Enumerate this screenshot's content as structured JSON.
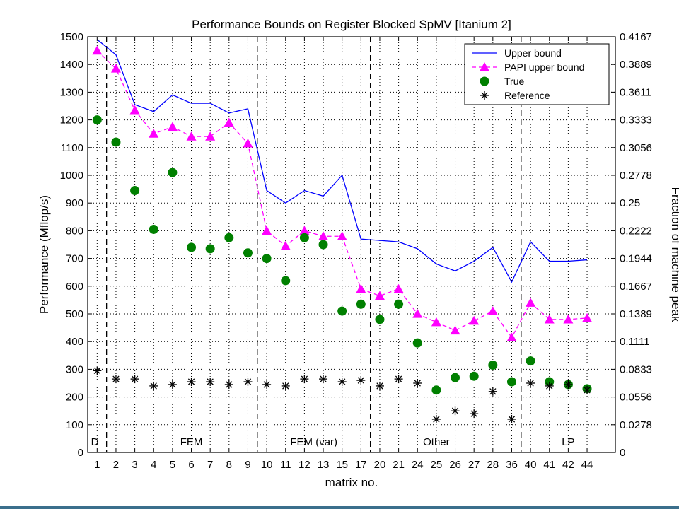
{
  "chart_data": {
    "type": "line",
    "title": "Performance Bounds on Register Blocked SpMV [Itanium 2]",
    "xlabel": "matrix no.",
    "ylabel": "Performance (Mflop/s)",
    "ylabel_right": "Fraction of machine peak",
    "categories": [
      "1",
      "2",
      "3",
      "4",
      "5",
      "6",
      "7",
      "8",
      "9",
      "10",
      "11",
      "12",
      "13",
      "15",
      "17",
      "20",
      "21",
      "24",
      "25",
      "26",
      "27",
      "28",
      "36",
      "40",
      "41",
      "42",
      "44"
    ],
    "ylim": [
      0,
      1500
    ],
    "yticks": [
      "0",
      "100",
      "200",
      "300",
      "400",
      "500",
      "600",
      "700",
      "800",
      "900",
      "1000",
      "1100",
      "1200",
      "1300",
      "1400",
      "1500"
    ],
    "yticks_right": [
      "0",
      "0.0278",
      "0.0556",
      "0.0833",
      "0.1111",
      "0.1389",
      "0.1667",
      "0.1944",
      "0.2222",
      "0.25",
      "0.2778",
      "0.3056",
      "0.3333",
      "0.3611",
      "0.3889",
      "0.4167"
    ],
    "grid": true,
    "legend_position": "top-right",
    "series": [
      {
        "name": "Upper bound",
        "style": "line",
        "color": "#0000ff",
        "values": [
          1490,
          1435,
          1255,
          1230,
          1290,
          1260,
          1260,
          1225,
          1240,
          945,
          900,
          945,
          925,
          1000,
          770,
          765,
          760,
          735,
          680,
          655,
          690,
          740,
          615,
          760,
          690,
          690,
          695
        ]
      },
      {
        "name": "PAPI upper bound",
        "style": "dashed-triangle",
        "color": "#ff00ff",
        "values": [
          1450,
          1385,
          1235,
          1150,
          1175,
          1140,
          1140,
          1190,
          1115,
          800,
          745,
          800,
          780,
          780,
          590,
          565,
          590,
          500,
          470,
          440,
          475,
          510,
          415,
          540,
          480,
          480,
          485
        ]
      },
      {
        "name": "True",
        "style": "circle",
        "color": "#008000",
        "values": [
          1200,
          1120,
          945,
          805,
          1010,
          740,
          735,
          775,
          720,
          700,
          620,
          775,
          750,
          510,
          535,
          480,
          535,
          395,
          225,
          270,
          275,
          315,
          255,
          330,
          255,
          245,
          230
        ]
      },
      {
        "name": "Reference",
        "style": "asterisk",
        "color": "#000000",
        "values": [
          295,
          265,
          265,
          240,
          245,
          255,
          255,
          245,
          255,
          245,
          240,
          265,
          265,
          255,
          260,
          240,
          265,
          250,
          120,
          150,
          140,
          220,
          120,
          250,
          240,
          245,
          225
        ]
      }
    ],
    "group_labels": [
      {
        "label": "D",
        "after_index": -1
      },
      {
        "label": "FEM",
        "after_index": 0
      },
      {
        "label": "FEM (var)",
        "after_index": 8
      },
      {
        "label": "Other",
        "after_index": 14
      },
      {
        "label": "LP",
        "after_index": 22
      }
    ],
    "group_label_positions": [
      0,
      5,
      11.5,
      18,
      25
    ],
    "dividers_after_index": [
      0,
      8,
      14,
      22
    ]
  }
}
